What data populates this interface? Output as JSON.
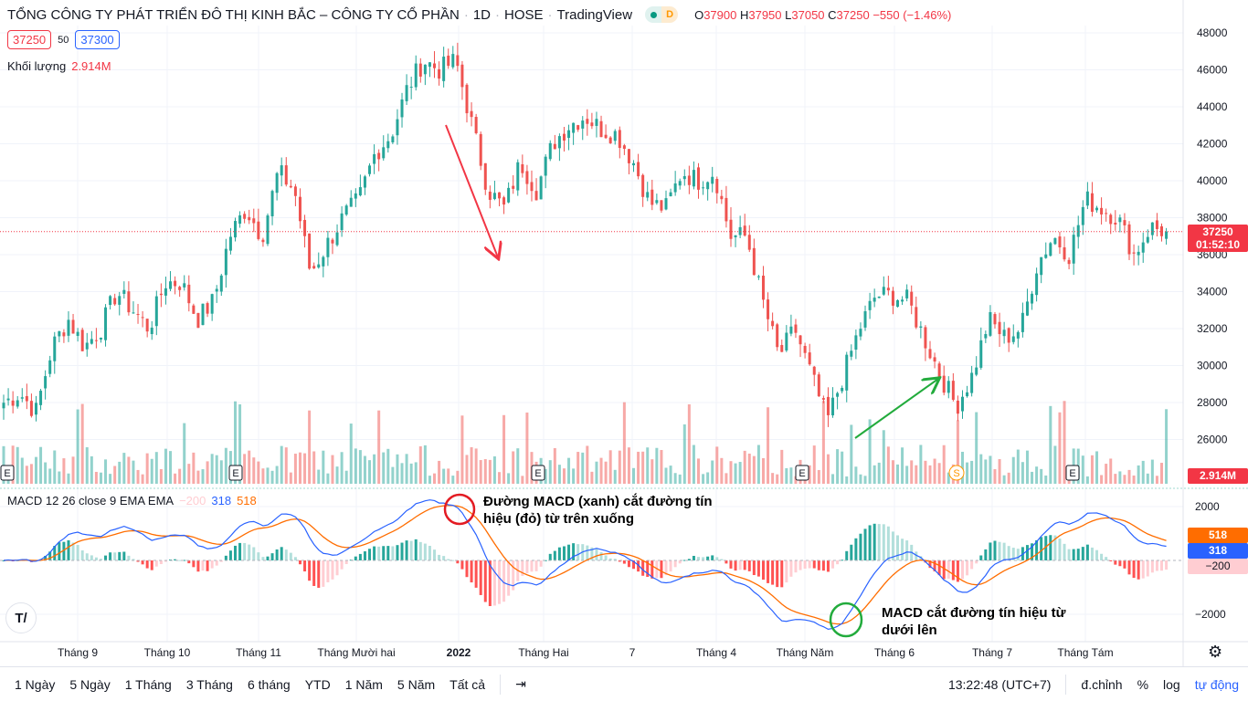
{
  "header": {
    "title": "TỔNG CÔNG TY PHÁT TRIỂN ĐÔ THỊ KINH BẮC – CÔNG TY CỔ PHẦN",
    "interval": "1D",
    "exchange": "HOSE",
    "source": "TradingView",
    "status_badge": "D",
    "ohlc": {
      "o_label": "O",
      "o": "37900",
      "h_label": "H",
      "h": "37950",
      "l_label": "L",
      "l": "37050",
      "c_label": "C",
      "c": "37250",
      "change": "−550 (−1.46%)"
    }
  },
  "quote": {
    "bid": "37250",
    "spread": "50",
    "ask": "37300"
  },
  "volume_legend": {
    "label": "Khối lượng",
    "value": "2.914M"
  },
  "macd_legend": {
    "label": "MACD 12 26 close 9 EMA EMA",
    "hist": "−200",
    "macd": "318",
    "signal": "518"
  },
  "annotations": {
    "bearish_cross": "Đường MACD (xanh) cắt đường tín hiệu (đỏ) từ trên xuống",
    "bullish_cross": "MACD cắt đường tín hiệu từ dưới lên"
  },
  "price_axis": {
    "last_price": "37250",
    "countdown": "01:52:10",
    "volume_last": "2.914M",
    "macd_labels": {
      "signal": "518",
      "macd": "318",
      "hist": "−200"
    }
  },
  "chart_data": {
    "type": "candlestick",
    "price_ticks": [
      "48000",
      "46000",
      "44000",
      "42000",
      "40000",
      "38000",
      "36000",
      "34000",
      "32000",
      "30000",
      "28000",
      "26000"
    ],
    "macd_ticks": [
      "2000",
      "−2000"
    ],
    "x_ticks": [
      "Tháng 9",
      "Tháng 10",
      "Tháng 11",
      "Tháng Mười hai",
      "2022",
      "Tháng Hai",
      "7",
      "Tháng 4",
      "Tháng Năm",
      "Tháng 6",
      "Tháng 7",
      "Tháng Tám"
    ],
    "ylim": [
      25000,
      49000
    ],
    "approx_weekly_close": [
      28000,
      28500,
      27500,
      31000,
      32500,
      31000,
      32000,
      34000,
      33000,
      32000,
      34500,
      34500,
      32500,
      33500,
      37000,
      38500,
      37000,
      40500,
      39500,
      35000,
      36500,
      38000,
      39000,
      41500,
      42500,
      45000,
      46500,
      46000,
      46500,
      43000,
      39500,
      38500,
      41000,
      39500,
      42000,
      43000,
      43500,
      42800,
      42500,
      41000,
      38800,
      38500,
      40500,
      40000,
      40500,
      37000,
      37000,
      33500,
      30500,
      32000,
      29500,
      27000,
      29500,
      32000,
      33800,
      33800,
      33500,
      31500,
      29500,
      27800,
      29500,
      32500,
      31500,
      32000,
      35500,
      37000,
      36000,
      39000,
      38500,
      38000,
      36000,
      37500,
      37250
    ],
    "last_close": 37250,
    "earnings_markers": "E",
    "split_marker": "S",
    "colors": {
      "up": "#26a69a",
      "down": "#ef5350",
      "macd": "#2962ff",
      "signal": "#ff6d00"
    }
  },
  "bottombar": {
    "ranges": [
      "1 Ngày",
      "5 Ngày",
      "1 Tháng",
      "3 Tháng",
      "6 tháng",
      "YTD",
      "1 Năm",
      "5 Năm",
      "Tất cả"
    ],
    "clock": "13:22:48 (UTC+7)",
    "adjust": "đ.chỉnh",
    "percent": "%",
    "log": "log",
    "auto": "tự động"
  }
}
